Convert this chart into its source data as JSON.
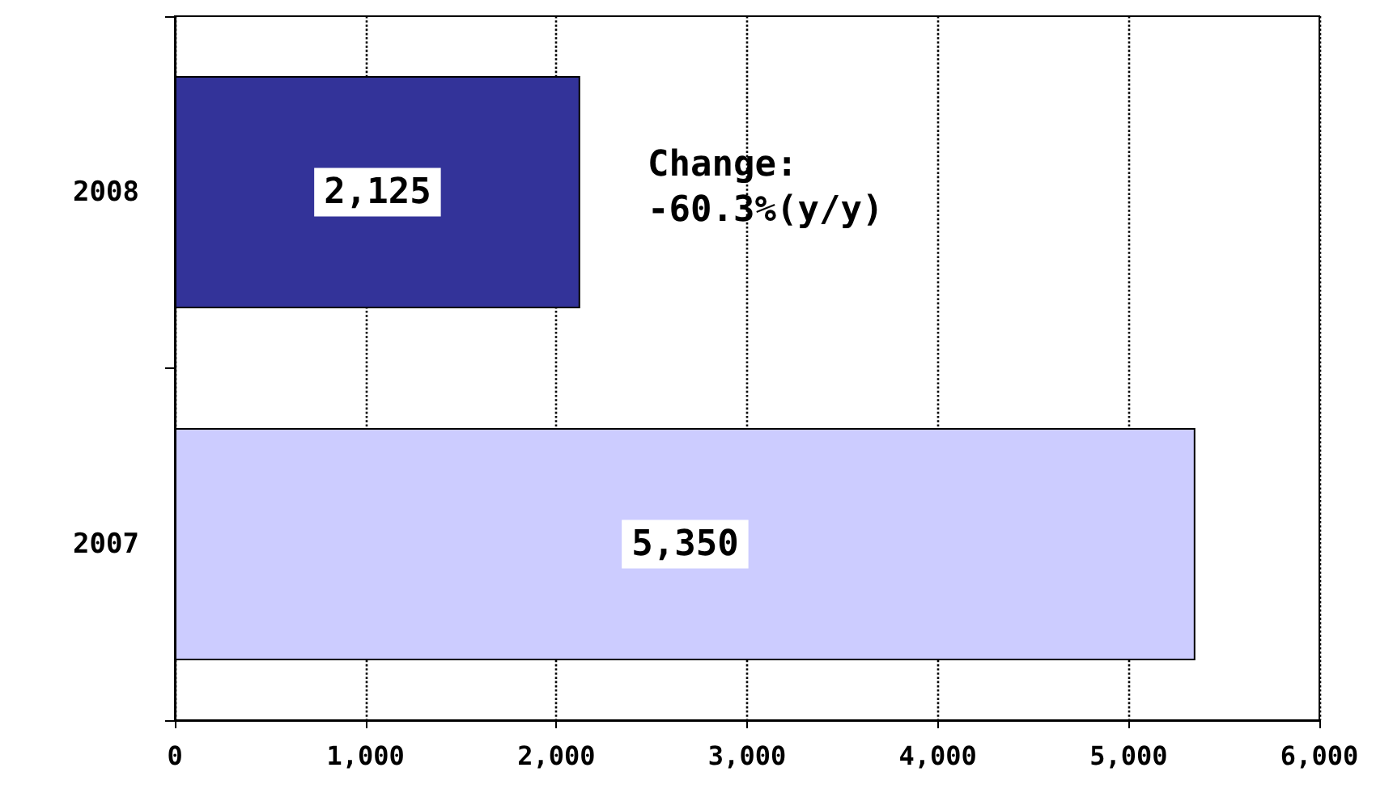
{
  "chart_data": {
    "type": "bar",
    "orientation": "horizontal",
    "categories": [
      "2008",
      "2007"
    ],
    "values": [
      2125,
      5350
    ],
    "colors": [
      "#333399",
      "#ccccff"
    ],
    "value_labels": [
      "2,125",
      "5,350"
    ],
    "xlim": [
      0,
      6000
    ],
    "xticks": [
      0,
      {
        "value": 1000,
        "label": "1,000"
      },
      {
        "value": 2000,
        "label": "2,000"
      },
      {
        "value": 3000,
        "label": "3,000"
      },
      {
        "value": 4000,
        "label": "4,000"
      },
      {
        "value": 5000,
        "label": "5,000"
      },
      {
        "value": 6000,
        "label": "6,000"
      }
    ],
    "grid": "x",
    "annotations": [
      "Change:\n-60.3%(y/y)"
    ]
  }
}
